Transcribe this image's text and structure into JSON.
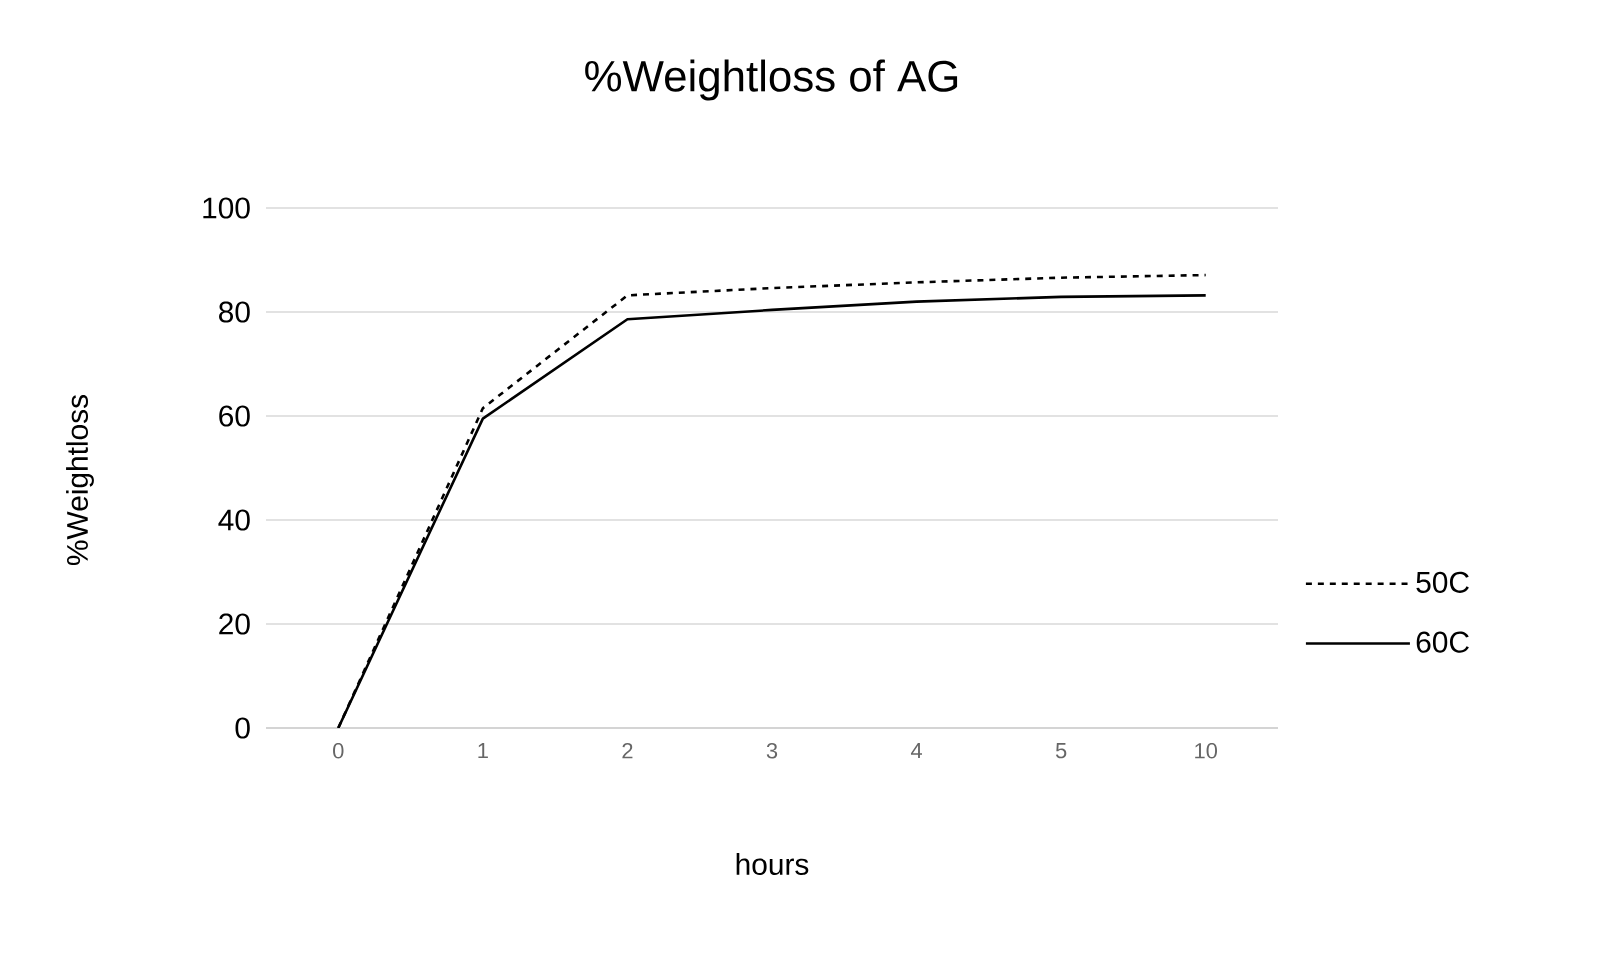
{
  "chart_data": {
    "type": "line",
    "title": "%Weightloss of AG",
    "xlabel": "hours",
    "ylabel": "%Weightloss",
    "categories": [
      "0",
      "1",
      "2",
      "3",
      "4",
      "5",
      "10"
    ],
    "series": [
      {
        "name": "50C",
        "color": "#000000",
        "line_style": "dashed",
        "values": [
          0,
          61.5,
          83.2,
          84.6,
          85.7,
          86.6,
          87.1
        ]
      },
      {
        "name": "60C",
        "color": "#000000",
        "line_style": "solid",
        "values": [
          0,
          59.5,
          78.6,
          80.4,
          82.0,
          82.9,
          83.2
        ]
      }
    ],
    "ylim": [
      0,
      100
    ],
    "yticks": [
      0,
      20,
      40,
      60,
      80,
      100
    ],
    "grid": "y",
    "legend": "right"
  }
}
